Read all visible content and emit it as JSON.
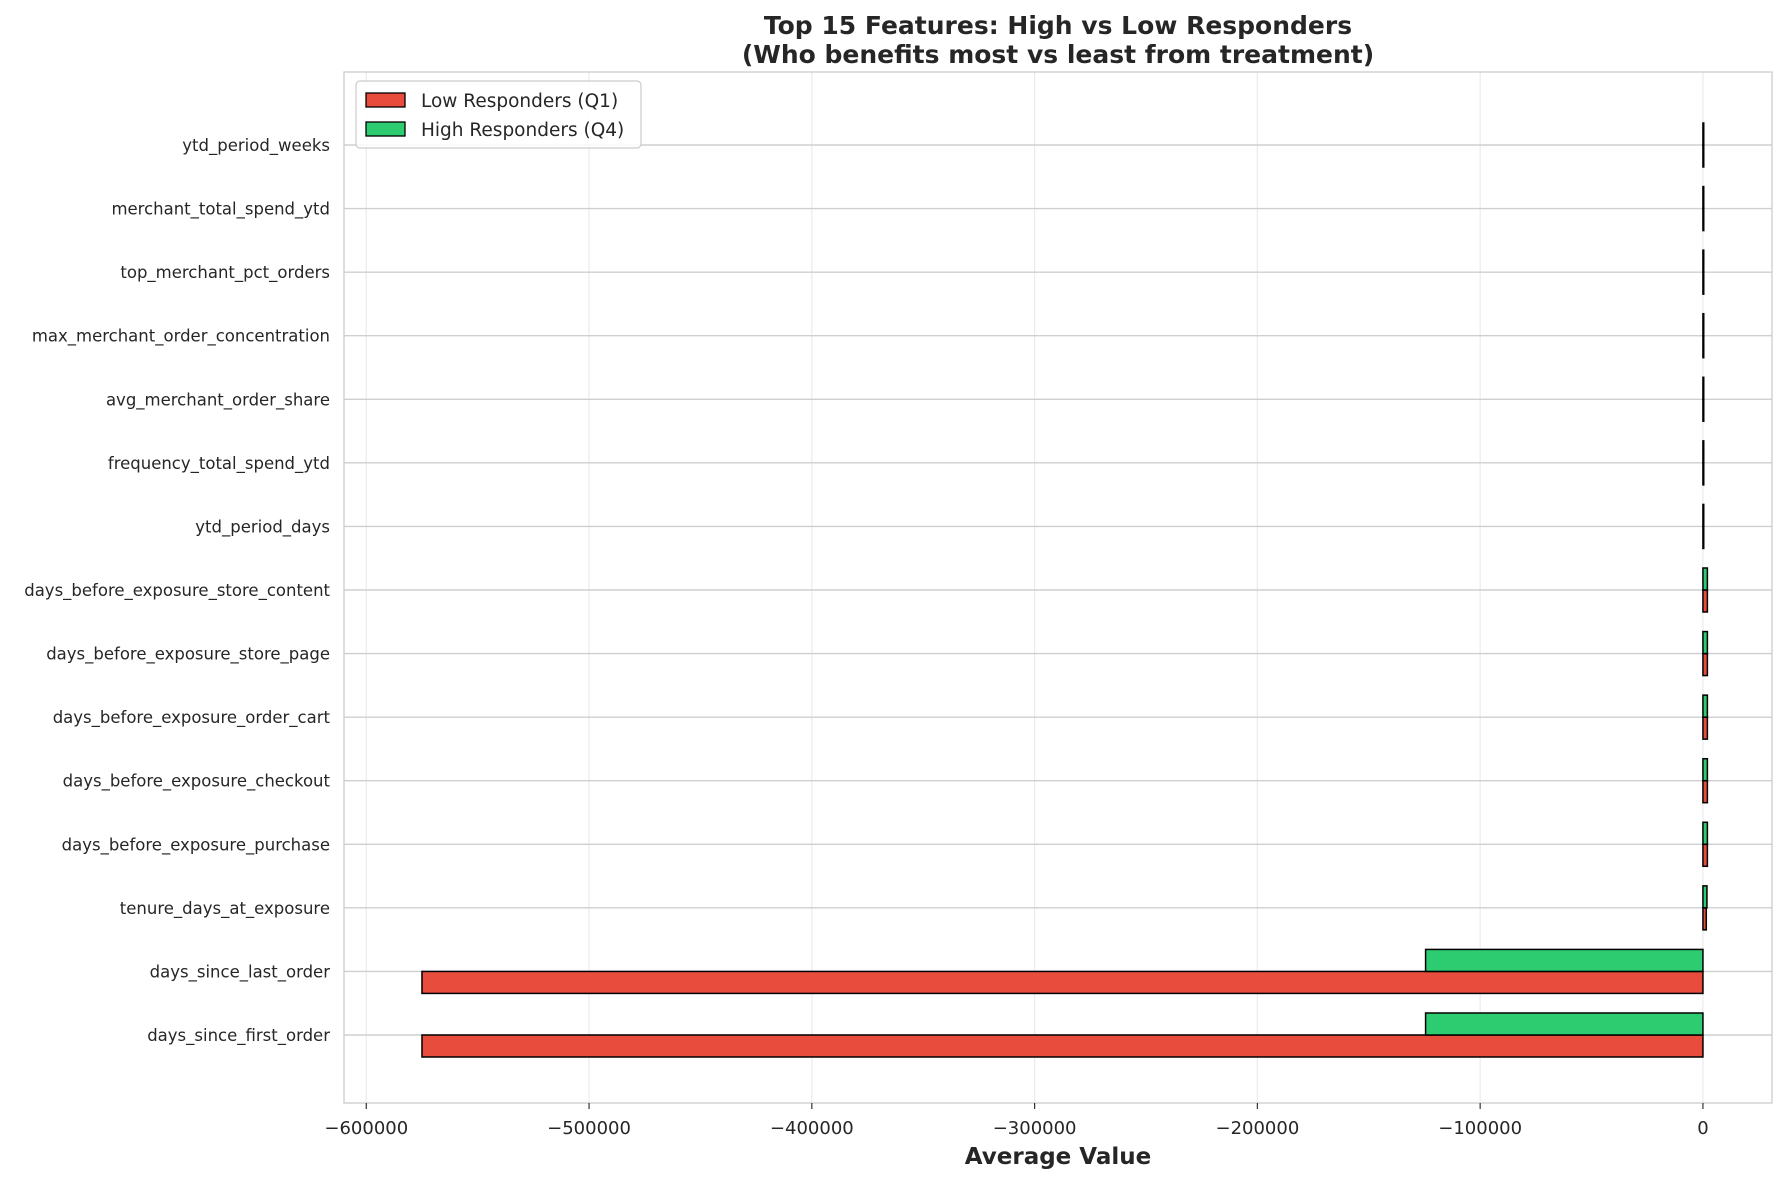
{
  "chart_data": {
    "type": "bar",
    "orientation": "horizontal",
    "title": "Top 15 Features: High vs Low Responders",
    "subtitle": "(Who benefits most vs least from treatment)",
    "xlabel": "Average Value",
    "ylabel": "",
    "xlim": [
      -610000,
      31000
    ],
    "xticks": [
      -600000,
      -500000,
      -400000,
      -300000,
      -200000,
      -100000,
      0
    ],
    "xtick_labels": [
      "−600000",
      "−500000",
      "−400000",
      "−300000",
      "−200000",
      "−100000",
      "0"
    ],
    "grid": true,
    "legend_position": "top-left",
    "categories": [
      "days_since_first_order",
      "days_since_last_order",
      "tenure_days_at_exposure",
      "days_before_exposure_purchase",
      "days_before_exposure_checkout",
      "days_before_exposure_order_cart",
      "days_before_exposure_store_page",
      "days_before_exposure_store_content",
      "ytd_period_days",
      "frequency_total_spend_ytd",
      "avg_merchant_order_share",
      "max_merchant_order_concentration",
      "top_merchant_pct_orders",
      "merchant_total_spend_ytd",
      "ytd_period_weeks"
    ],
    "series": [
      {
        "name": "Low Responders (Q1)",
        "color": "#e74c3c",
        "values": [
          -575000,
          -575000,
          1500,
          2000,
          2000,
          2000,
          2000,
          2000,
          0,
          300,
          0,
          0,
          0,
          0,
          0
        ]
      },
      {
        "name": "High Responders (Q4)",
        "color": "#2ecc71",
        "values": [
          -124500,
          -124500,
          1800,
          2000,
          2000,
          2000,
          2000,
          2000,
          0,
          300,
          0,
          0,
          0,
          0,
          0
        ]
      }
    ]
  }
}
